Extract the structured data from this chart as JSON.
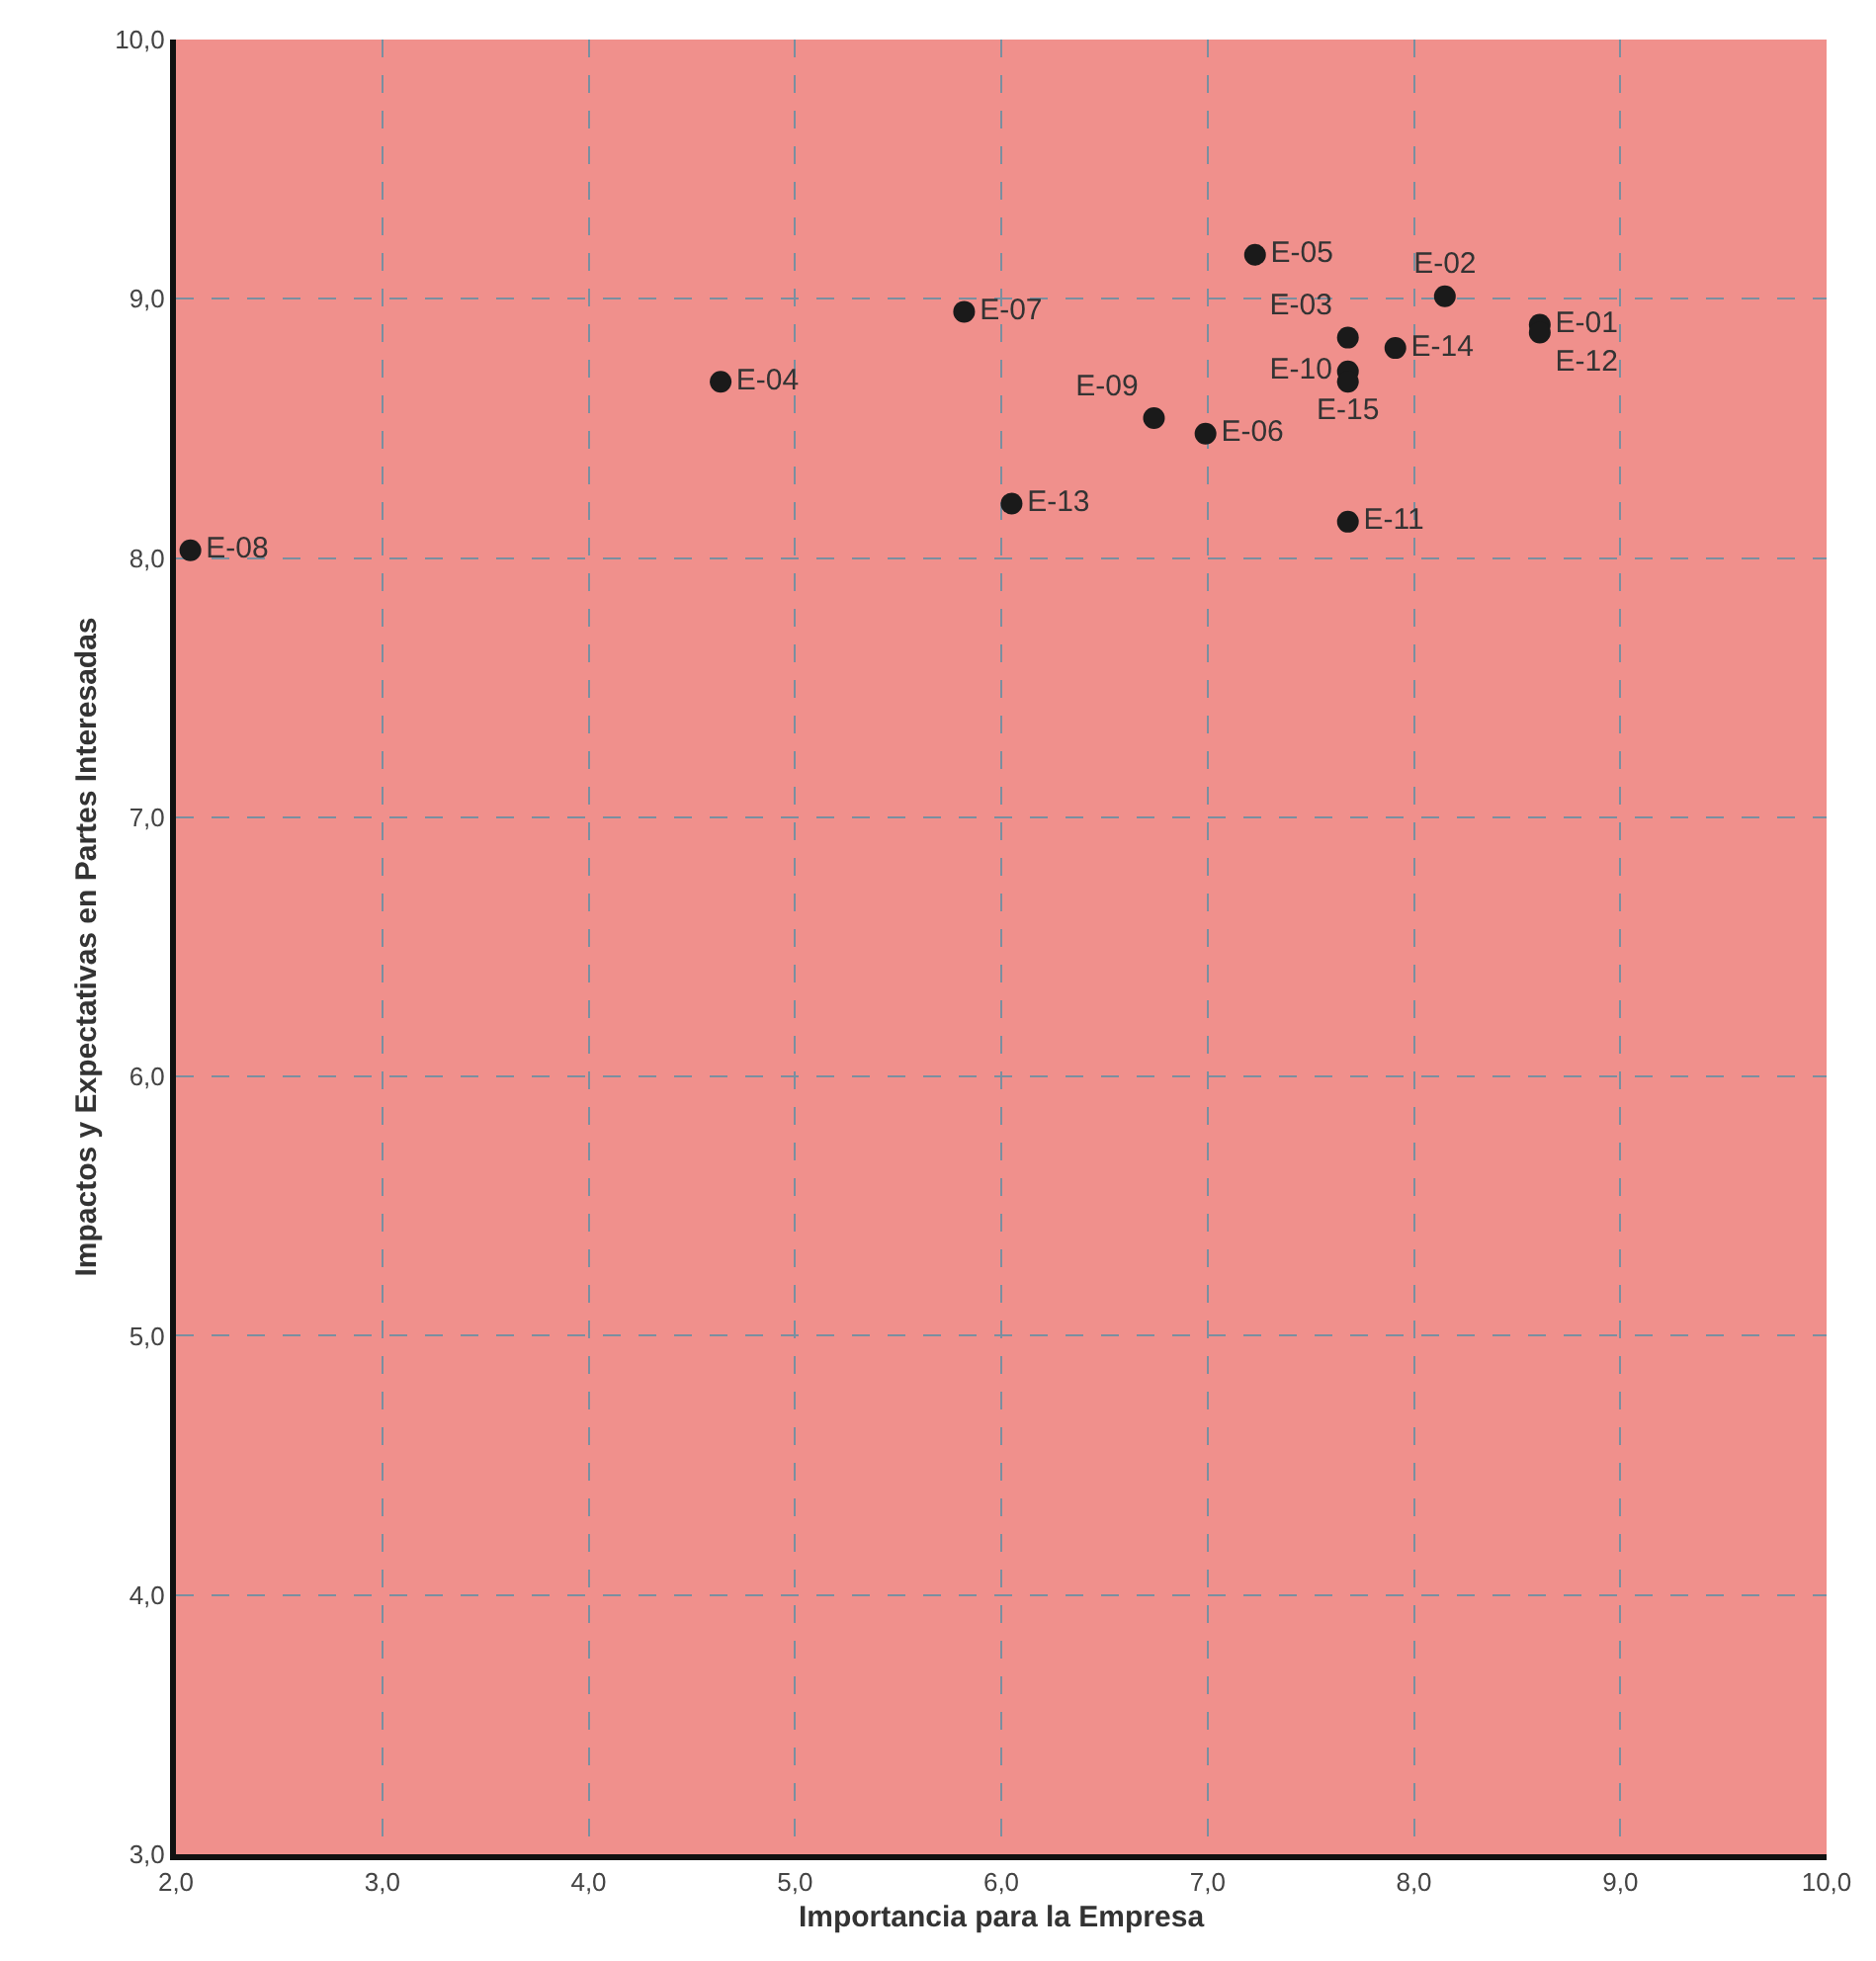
{
  "chart_data": {
    "type": "scatter",
    "xlabel": "Importancia para la Empresa",
    "ylabel": "Impactos y Expectativas en Partes Interesadas",
    "x": [
      8.61,
      8.15,
      7.68,
      4.64,
      7.23,
      6.99,
      5.82,
      2.07,
      6.74,
      7.68,
      7.68,
      8.61,
      6.05,
      7.91,
      7.68
    ],
    "values": [
      8.9,
      9.01,
      8.85,
      8.68,
      9.17,
      8.48,
      8.95,
      8.03,
      8.54,
      8.72,
      8.14,
      8.87,
      8.21,
      8.81,
      8.68
    ],
    "value_labels": [
      "E-01",
      "E-02",
      "E-03",
      "E-04",
      "E-05",
      "E-06",
      "E-07",
      "E-08",
      "E-09",
      "E-10",
      "E-11",
      "E-12",
      "E-13",
      "E-14",
      "E-15"
    ],
    "color": "#1a1a1a",
    "marker": "circle",
    "grid": true,
    "xlim": [
      2,
      10
    ],
    "ylim": [
      3,
      10
    ],
    "xticks": [
      {
        "value": 2,
        "label": "2,0"
      },
      {
        "value": 3,
        "label": "3,0"
      },
      {
        "value": 4,
        "label": "4,0"
      },
      {
        "value": 5,
        "label": "5,0"
      },
      {
        "value": 6,
        "label": "6,0"
      },
      {
        "value": 7,
        "label": "7,0"
      },
      {
        "value": 8,
        "label": "8,0"
      },
      {
        "value": 9,
        "label": "9,0"
      },
      {
        "value": 10,
        "label": "10,0"
      }
    ],
    "yticks": [
      {
        "value": 3,
        "label": "3,0"
      },
      {
        "value": 4,
        "label": "4,0"
      },
      {
        "value": 5,
        "label": "5,0"
      },
      {
        "value": 6,
        "label": "6,0"
      },
      {
        "value": 7,
        "label": "7,0"
      },
      {
        "value": 8,
        "label": "8,0"
      },
      {
        "value": 9,
        "label": "9,0"
      },
      {
        "value": 10,
        "label": "10,0"
      }
    ]
  }
}
